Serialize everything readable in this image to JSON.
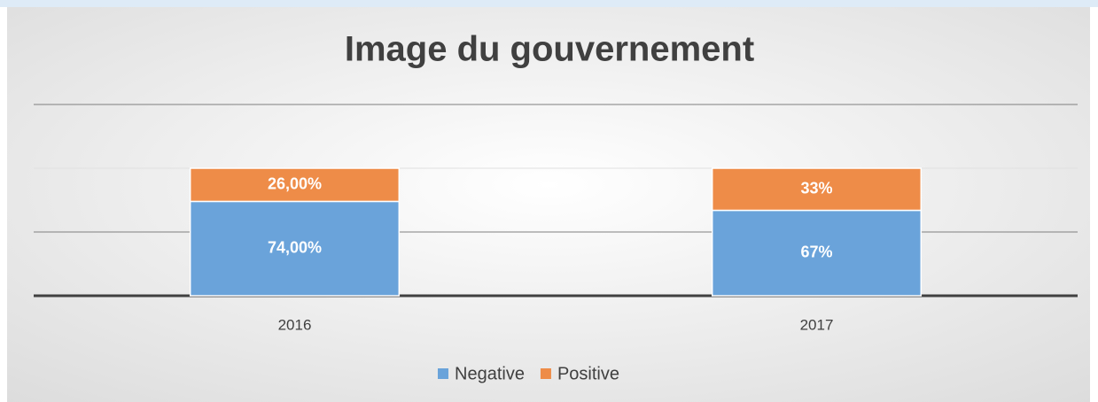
{
  "chart_data": {
    "type": "stacked_bar",
    "title": "Image du gouvernement",
    "categories": [
      "2016",
      "2017"
    ],
    "series": [
      {
        "name": "Negative",
        "color": "#6aa3da",
        "values": [
          74,
          67
        ],
        "value_labels": [
          "74,00%",
          "67%"
        ]
      },
      {
        "name": "Positive",
        "color": "#ee8c48",
        "values": [
          26,
          33
        ],
        "value_labels": [
          "26,00%",
          "33%"
        ]
      }
    ],
    "ylim": [
      0,
      150
    ],
    "yticks": [
      0,
      50,
      100,
      150
    ],
    "grid": true,
    "legend": "bottom"
  }
}
